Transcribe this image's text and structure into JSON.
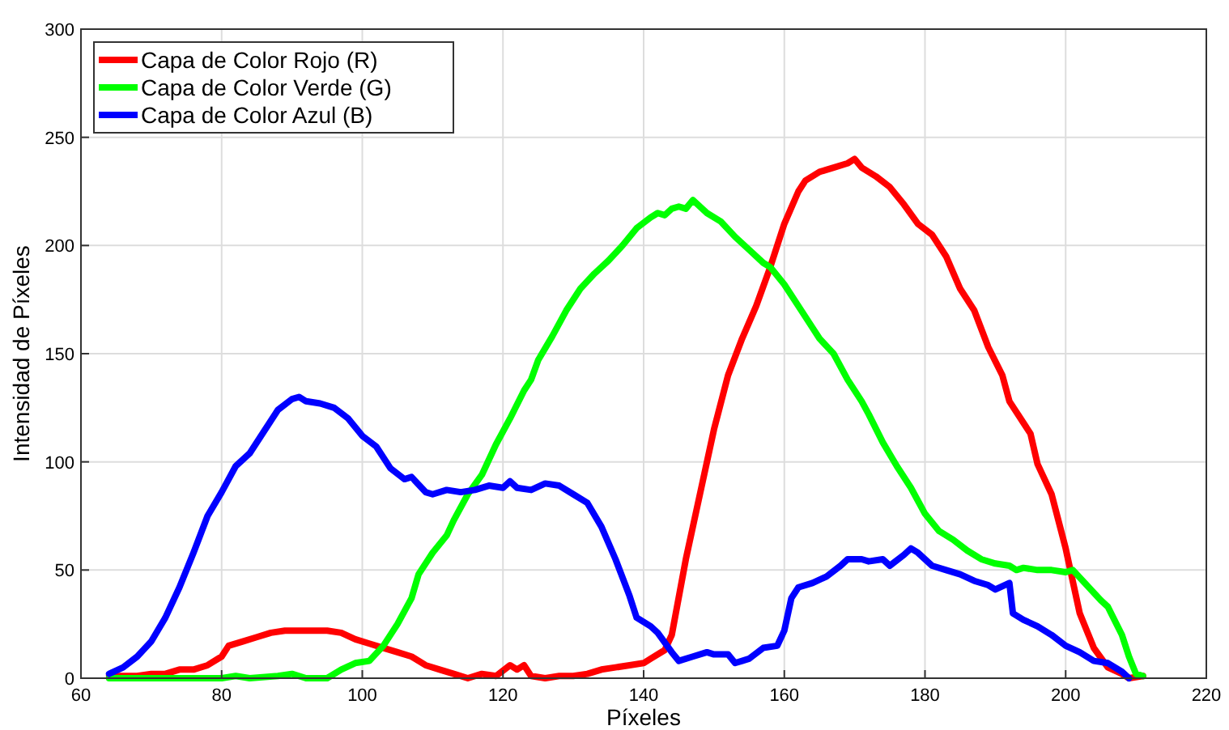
{
  "chart_data": {
    "type": "line",
    "xlabel": "Píxeles",
    "ylabel": "Intensidad de Píxeles",
    "xlim": [
      60,
      220
    ],
    "ylim": [
      0,
      300
    ],
    "xticks": [
      60,
      80,
      100,
      120,
      140,
      160,
      180,
      200,
      220
    ],
    "yticks": [
      0,
      50,
      100,
      150,
      200,
      250,
      300
    ],
    "grid": true,
    "legend": "top left",
    "line_style": "solid",
    "marker": "none",
    "series": [
      {
        "name": "Capa de Color Rojo (R)",
        "color": "#ff0000",
        "x": [
          64,
          66,
          68,
          70,
          72,
          74,
          76,
          78,
          80,
          81,
          83,
          85,
          87,
          89,
          91,
          93,
          95,
          97,
          99,
          101,
          103,
          105,
          107,
          109,
          111,
          113,
          115,
          117,
          119,
          121,
          122,
          123,
          124,
          126,
          128,
          130,
          132,
          134,
          136,
          138,
          140,
          141,
          143,
          144,
          146,
          148,
          150,
          152,
          154,
          156,
          158,
          160,
          162,
          163,
          165,
          167,
          169,
          170,
          171,
          173,
          175,
          177,
          179,
          181,
          183,
          185,
          187,
          189,
          191,
          192,
          194,
          195,
          196,
          198,
          200,
          202,
          204,
          206,
          208,
          209,
          211
        ],
        "values": [
          1,
          1,
          1,
          2,
          2,
          4,
          4,
          6,
          10,
          15,
          17,
          19,
          21,
          22,
          22,
          22,
          22,
          21,
          18,
          16,
          14,
          12,
          10,
          6,
          4,
          2,
          0,
          2,
          1,
          6,
          4,
          6,
          1,
          0,
          1,
          1,
          2,
          4,
          5,
          6,
          7,
          9,
          13,
          20,
          55,
          85,
          115,
          140,
          157,
          172,
          190,
          210,
          225,
          230,
          234,
          236,
          238,
          240,
          236,
          232,
          227,
          219,
          210,
          205,
          195,
          180,
          170,
          153,
          140,
          128,
          118,
          113,
          99,
          85,
          60,
          30,
          14,
          5,
          2,
          0,
          1
        ]
      },
      {
        "name": "Capa de Color Verde (G)",
        "color": "#00ff00",
        "x": [
          64,
          70,
          80,
          82,
          84,
          88,
          90,
          92,
          95,
          97,
          99,
          101,
          103,
          105,
          107,
          108,
          110,
          112,
          113,
          115,
          117,
          119,
          121,
          123,
          124,
          125,
          127,
          129,
          131,
          133,
          135,
          137,
          139,
          141,
          142,
          143,
          144,
          145,
          146,
          147,
          149,
          151,
          153,
          155,
          157,
          158,
          160,
          162,
          164,
          165,
          167,
          169,
          171,
          172,
          174,
          176,
          178,
          180,
          182,
          184,
          186,
          188,
          190,
          192,
          193,
          194,
          196,
          198,
          200,
          201,
          203,
          205,
          206,
          208,
          209,
          210,
          211
        ],
        "values": [
          0,
          0,
          0,
          1,
          0,
          1,
          2,
          0,
          0,
          4,
          7,
          8,
          15,
          25,
          37,
          48,
          58,
          66,
          73,
          85,
          94,
          108,
          120,
          133,
          138,
          147,
          158,
          170,
          180,
          187,
          193,
          200,
          208,
          213,
          215,
          214,
          217,
          218,
          217,
          221,
          215,
          211,
          204,
          198,
          192,
          190,
          182,
          172,
          162,
          157,
          150,
          138,
          128,
          122,
          109,
          98,
          88,
          76,
          68,
          64,
          59,
          55,
          53,
          52,
          50,
          51,
          50,
          50,
          49,
          50,
          43,
          36,
          33,
          20,
          10,
          2,
          1
        ]
      },
      {
        "name": "Capa de Color Azul (B)",
        "color": "#0000ff",
        "x": [
          64,
          66,
          68,
          70,
          72,
          74,
          76,
          78,
          80,
          82,
          84,
          86,
          88,
          90,
          91,
          92,
          94,
          96,
          98,
          100,
          102,
          104,
          106,
          107,
          109,
          110,
          112,
          114,
          116,
          118,
          120,
          121,
          122,
          124,
          126,
          128,
          130,
          132,
          134,
          136,
          138,
          139,
          141,
          142,
          144,
          145,
          147,
          149,
          150,
          152,
          153,
          154,
          155,
          157,
          159,
          160,
          161,
          162,
          164,
          166,
          168,
          169,
          171,
          172,
          174,
          175,
          177,
          178,
          179,
          181,
          183,
          185,
          187,
          189,
          190,
          192,
          192.5,
          194,
          196,
          198,
          200,
          202,
          204,
          206,
          208,
          209
        ],
        "values": [
          2,
          5,
          10,
          17,
          28,
          42,
          58,
          75,
          86,
          98,
          104,
          114,
          124,
          129,
          130,
          128,
          127,
          125,
          120,
          112,
          107,
          97,
          92,
          93,
          86,
          85,
          87,
          86,
          87,
          89,
          88,
          91,
          88,
          87,
          90,
          89,
          85,
          81,
          70,
          55,
          38,
          28,
          24,
          21,
          12,
          8,
          10,
          12,
          11,
          11,
          7,
          8,
          9,
          14,
          15,
          22,
          37,
          42,
          44,
          47,
          52,
          55,
          55,
          54,
          55,
          52,
          57,
          60,
          58,
          52,
          50,
          48,
          45,
          43,
          41,
          44,
          30,
          27,
          24,
          20,
          15,
          12,
          8,
          7,
          3,
          0
        ]
      }
    ]
  }
}
